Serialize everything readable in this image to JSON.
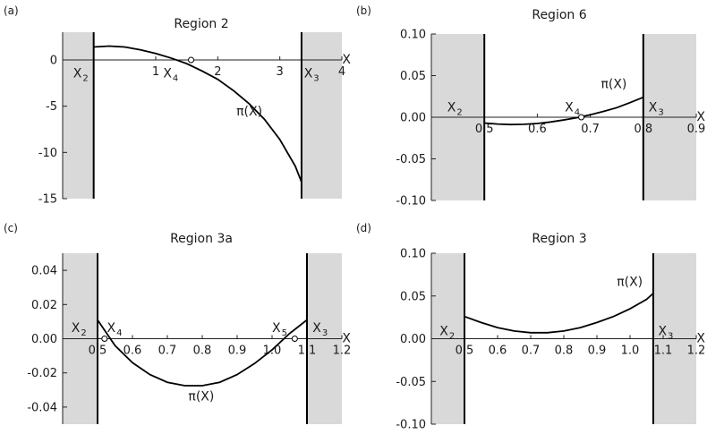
{
  "chart_data": [
    {
      "id": "a",
      "type": "line",
      "panel_label": "(a)",
      "title": "Region 2",
      "xlabel": "X",
      "ylabel": "",
      "xlim": [
        -0.5,
        4.0
      ],
      "ylim": [
        -15.0,
        3.0
      ],
      "x_ticks": [
        1,
        2,
        3,
        4
      ],
      "x_tick_labels": [
        "1",
        "2",
        "3",
        "4"
      ],
      "y_ticks": [
        0,
        -5,
        -10,
        -15
      ],
      "y_tick_labels": [
        "0",
        "-5",
        "-10",
        "-15"
      ],
      "shaded_regions": [
        [
          -0.5,
          0.0
        ],
        [
          3.35,
          4.0
        ]
      ],
      "boundaries": [
        0.0,
        3.35
      ],
      "curve_label": "π(X)",
      "curve_label_at": [
        2.3,
        -6.0
      ],
      "series": [
        {
          "x": [
            0.0,
            0.25,
            0.5,
            0.75,
            1.0,
            1.25,
            1.5,
            1.75,
            2.0,
            2.25,
            2.5,
            2.75,
            3.0,
            3.25,
            3.35
          ],
          "values": [
            1.4,
            1.5,
            1.4,
            1.1,
            0.7,
            0.2,
            -0.4,
            -1.2,
            -2.1,
            -3.3,
            -4.7,
            -6.4,
            -8.6,
            -11.5,
            -13.2
          ]
        }
      ],
      "markers": [
        {
          "name": "X",
          "sub": "2",
          "x": 0.0,
          "y": 0.0,
          "open": false,
          "label_at": [
            -0.33,
            -1.9
          ]
        },
        {
          "name": "X",
          "sub": "4",
          "x": 1.57,
          "y": 0.0,
          "open": true,
          "label_at": [
            1.12,
            -1.9
          ]
        },
        {
          "name": "X",
          "sub": "3",
          "x": 3.35,
          "y": 0.0,
          "open": false,
          "label_at": [
            3.39,
            -1.9
          ]
        }
      ]
    },
    {
      "id": "b",
      "type": "line",
      "panel_label": "(b)",
      "title": "Region 6",
      "xlabel": "X",
      "ylabel": "",
      "xlim": [
        0.4,
        0.9
      ],
      "ylim": [
        -0.1,
        0.1
      ],
      "x_ticks": [
        0.5,
        0.6,
        0.7,
        0.8,
        0.9
      ],
      "x_tick_labels": [
        "0.5",
        "0.6",
        "0.7",
        "0.8",
        "0.9"
      ],
      "y_ticks": [
        0.1,
        0.05,
        0.0,
        -0.05,
        -0.1
      ],
      "y_tick_labels": [
        "0.10",
        "0.05",
        "0.00",
        "-0.05",
        "-0.10"
      ],
      "shaded_regions": [
        [
          0.4,
          0.5
        ],
        [
          0.8,
          0.9
        ]
      ],
      "boundaries": [
        0.5,
        0.8
      ],
      "curve_label": "π(X)",
      "curve_label_at": [
        0.72,
        0.035
      ],
      "series": [
        {
          "x": [
            0.5,
            0.525,
            0.55,
            0.575,
            0.6,
            0.625,
            0.65,
            0.675,
            0.7,
            0.725,
            0.75,
            0.775,
            0.8
          ],
          "values": [
            -0.007,
            -0.0082,
            -0.0088,
            -0.0085,
            -0.0075,
            -0.0057,
            -0.0033,
            -0.0005,
            0.003,
            0.007,
            0.0115,
            0.0175,
            0.024
          ]
        }
      ],
      "markers": [
        {
          "name": "X",
          "sub": "2",
          "x": 0.5,
          "y": 0.0,
          "open": false,
          "label_at": [
            0.43,
            0.007
          ]
        },
        {
          "name": "X",
          "sub": "4",
          "x": 0.683,
          "y": 0.0,
          "open": true,
          "label_at": [
            0.652,
            0.007
          ]
        },
        {
          "name": "X",
          "sub": "3",
          "x": 0.8,
          "y": 0.0,
          "open": false,
          "label_at": [
            0.81,
            0.007
          ]
        }
      ]
    },
    {
      "id": "c",
      "type": "line",
      "panel_label": "(c)",
      "title": "Region 3a",
      "xlabel": "X",
      "ylabel": "",
      "xlim": [
        0.4,
        1.2
      ],
      "ylim": [
        -0.05,
        0.05
      ],
      "x_ticks": [
        0.5,
        0.6,
        0.7,
        0.8,
        0.9,
        1.0,
        1.1,
        1.2
      ],
      "x_tick_labels": [
        "0.5",
        "0.6",
        "0.7",
        "0.8",
        "0.9",
        "1.0",
        "1.1",
        "1.2"
      ],
      "y_ticks": [
        0.04,
        0.02,
        0.0,
        -0.02,
        -0.04
      ],
      "y_tick_labels": [
        "0.04",
        "0.02",
        "0.00",
        "-0.02",
        "-0.04"
      ],
      "shaded_regions": [
        [
          0.4,
          0.5
        ],
        [
          1.1,
          1.2
        ]
      ],
      "boundaries": [
        0.5,
        1.1
      ],
      "curve_label": "π(X)",
      "curve_label_at": [
        0.76,
        -0.036
      ],
      "series": [
        {
          "x": [
            0.5,
            0.55,
            0.6,
            0.65,
            0.7,
            0.75,
            0.8,
            0.85,
            0.9,
            0.95,
            1.0,
            1.05,
            1.1
          ],
          "values": [
            0.011,
            -0.004,
            -0.014,
            -0.021,
            -0.0255,
            -0.0275,
            -0.0275,
            -0.0255,
            -0.021,
            -0.0145,
            -0.0065,
            0.003,
            0.011
          ]
        }
      ],
      "markers": [
        {
          "name": "X",
          "sub": "2",
          "x": 0.5,
          "y": 0.0,
          "open": false,
          "label_at": [
            0.425,
            0.004
          ]
        },
        {
          "name": "X",
          "sub": "4",
          "x": 0.52,
          "y": 0.0,
          "open": true,
          "label_at": [
            0.527,
            0.004
          ]
        },
        {
          "name": "X",
          "sub": "5",
          "x": 1.065,
          "y": 0.0,
          "open": true,
          "label_at": [
            1.0,
            0.004
          ]
        },
        {
          "name": "X",
          "sub": "3",
          "x": 1.1,
          "y": 0.0,
          "open": false,
          "label_at": [
            1.116,
            0.004
          ]
        }
      ]
    },
    {
      "id": "d",
      "type": "line",
      "panel_label": "(d)",
      "title": "Region 3",
      "xlabel": "X",
      "ylabel": "",
      "xlim": [
        0.4,
        1.2
      ],
      "ylim": [
        -0.1,
        0.1
      ],
      "x_ticks": [
        0.5,
        0.6,
        0.7,
        0.8,
        0.9,
        1.0,
        1.1,
        1.2
      ],
      "x_tick_labels": [
        "0.5",
        "0.6",
        "0.7",
        "0.8",
        "0.9",
        "1.0",
        "1.1",
        "1.2"
      ],
      "y_ticks": [
        0.1,
        0.05,
        0.0,
        -0.05,
        -0.1
      ],
      "y_tick_labels": [
        "0.10",
        "0.05",
        "0.00",
        "-0.05",
        "-0.10"
      ],
      "shaded_regions": [
        [
          0.4,
          0.5
        ],
        [
          1.07,
          1.2
        ]
      ],
      "boundaries": [
        0.5,
        1.07
      ],
      "curve_label": "π(X)",
      "curve_label_at": [
        0.96,
        0.062
      ],
      "series": [
        {
          "x": [
            0.5,
            0.55,
            0.6,
            0.65,
            0.7,
            0.75,
            0.8,
            0.85,
            0.9,
            0.95,
            1.0,
            1.05,
            1.07
          ],
          "values": [
            0.026,
            0.019,
            0.013,
            0.009,
            0.007,
            0.007,
            0.009,
            0.013,
            0.019,
            0.026,
            0.035,
            0.046,
            0.053
          ]
        }
      ],
      "markers": [
        {
          "name": "X",
          "sub": "2",
          "x": 0.5,
          "y": 0.0,
          "open": false,
          "label_at": [
            0.425,
            0.004
          ]
        },
        {
          "name": "X",
          "sub": "3",
          "x": 1.07,
          "y": 0.0,
          "open": false,
          "label_at": [
            1.085,
            0.004
          ]
        }
      ]
    }
  ],
  "style": {
    "shade_color": "#d9d9d9",
    "curve_color": "#000000",
    "axis_color": "#222222"
  }
}
